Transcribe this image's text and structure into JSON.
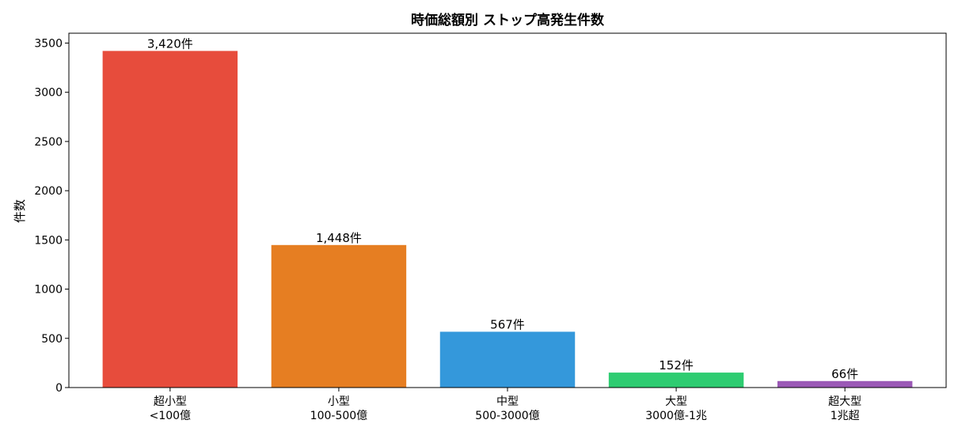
{
  "chart_data": {
    "type": "bar",
    "title": "時価総額別 ストップ高発生件数",
    "xlabel": "",
    "ylabel": "件数",
    "ylim": [
      0,
      3600
    ],
    "yticks": [
      "0",
      "500",
      "1000",
      "1500",
      "2000",
      "2500",
      "3000",
      "3500"
    ],
    "grid": false,
    "categories": [
      [
        "超小型",
        "<100億"
      ],
      [
        "小型",
        "100-500億"
      ],
      [
        "中型",
        "500-3000億"
      ],
      [
        "大型",
        "3000億-1兆"
      ],
      [
        "超大型",
        "1兆超"
      ]
    ],
    "values": [
      3420,
      1448,
      567,
      152,
      66
    ],
    "data_labels": [
      "3,420件",
      "1,448件",
      "567件",
      "152件",
      "66件"
    ],
    "colors": [
      "#e74c3c",
      "#e67e22",
      "#3498db",
      "#2ecc71",
      "#9b59b6"
    ]
  }
}
